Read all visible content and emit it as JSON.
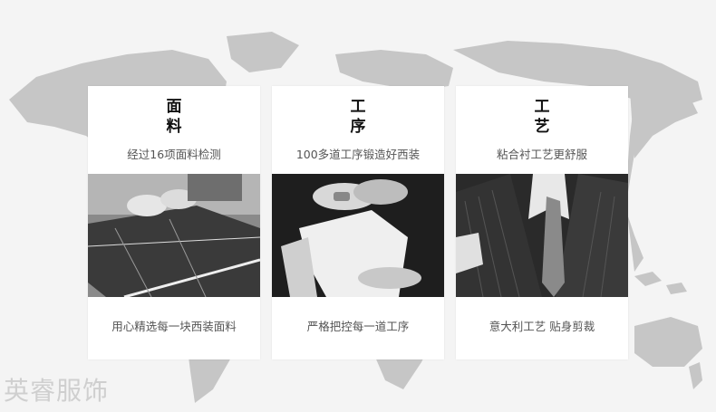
{
  "cards": [
    {
      "title_line1": "面",
      "title_line2": "料",
      "subtitle": "经过16项面料检测",
      "caption": "用心精选每一块西装面料",
      "image": "fabric-cutting-photo"
    },
    {
      "title_line1": "工",
      "title_line2": "序",
      "subtitle": "100多道工序锻造好西装",
      "caption": "严格把控每一道工序",
      "image": "hand-sewing-photo"
    },
    {
      "title_line1": "工",
      "title_line2": "艺",
      "subtitle": "粘合衬工艺更舒服",
      "caption": "意大利工艺  贴身剪裁",
      "image": "suit-detail-photo"
    }
  ],
  "watermark": "英睿服饰",
  "colors": {
    "background": "#f4f4f4",
    "map": "#c4c4c4",
    "card": "#ffffff",
    "title": "#111111",
    "text": "#555555"
  }
}
